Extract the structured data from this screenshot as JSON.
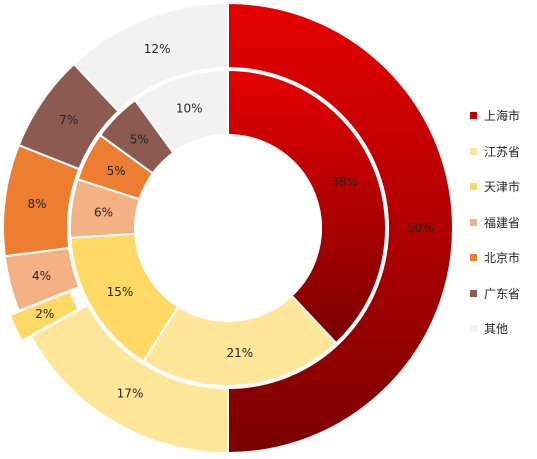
{
  "chart_data": {
    "type": "pie",
    "variant": "double-donut",
    "title": "",
    "categories": [
      "上海市",
      "江苏省",
      "天津市",
      "福建省",
      "北京市",
      "广东省",
      "其他"
    ],
    "colors": [
      "#c00000",
      "#ffe699",
      "#ffd966",
      "#f4b183",
      "#ed7d31",
      "#8c5a50",
      "#f2f2f2"
    ],
    "series": [
      {
        "ring": "outer",
        "values": [
          50,
          17,
          2,
          4,
          8,
          7,
          12
        ],
        "labels": [
          "50%",
          "17%",
          "2%",
          "4%",
          "8%",
          "7%",
          "12%"
        ]
      },
      {
        "ring": "inner",
        "values": [
          38,
          21,
          15,
          6,
          5,
          5,
          10
        ],
        "labels": [
          "38%",
          "21%",
          "15%",
          "6%",
          "5%",
          "5%",
          "10%"
        ]
      }
    ],
    "legend": {
      "position": "right"
    }
  }
}
